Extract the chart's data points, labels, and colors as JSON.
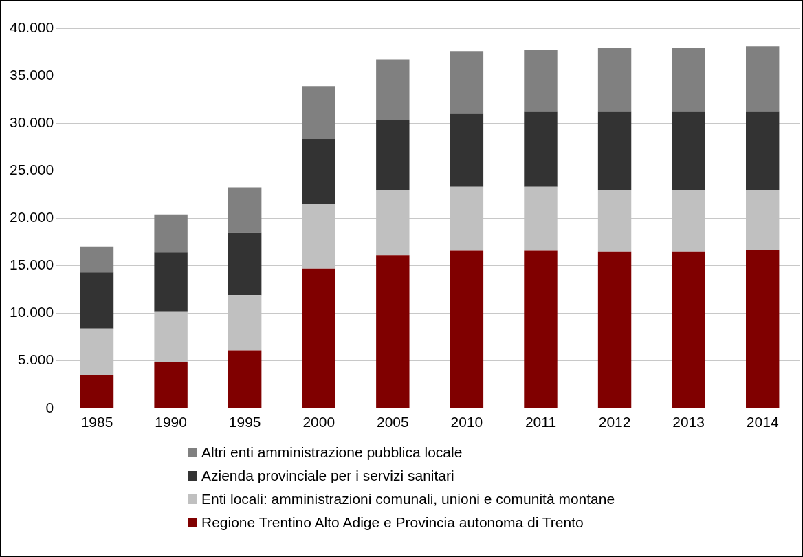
{
  "chart_data": {
    "type": "bar",
    "stacked": true,
    "categories": [
      "1985",
      "1990",
      "1995",
      "2000",
      "2005",
      "2010",
      "2011",
      "2012",
      "2013",
      "2014"
    ],
    "series": [
      {
        "name": "Regione Trentino Alto Adige e Provincia autonoma di Trento",
        "color": "#800000",
        "values": [
          3500,
          4900,
          6100,
          14700,
          16100,
          16600,
          16600,
          16500,
          16500,
          16700
        ]
      },
      {
        "name": "Enti locali: amministrazioni comunali, unioni e comunità montane",
        "color": "#c0c0c0",
        "values": [
          4900,
          5300,
          5800,
          6850,
          6900,
          6700,
          6700,
          6500,
          6500,
          6300
        ]
      },
      {
        "name": "Azienda provinciale per i servizi sanitari",
        "color": "#333333",
        "values": [
          5900,
          6200,
          6550,
          6800,
          7300,
          7700,
          7900,
          8200,
          8200,
          8200
        ]
      },
      {
        "name": "Altri enti amministrazione pubblica locale",
        "color": "#808080",
        "values": [
          2700,
          4000,
          4800,
          5550,
          6400,
          6600,
          6550,
          6700,
          6700,
          6900
        ]
      }
    ],
    "ylim": [
      0,
      40000
    ],
    "yticks": [
      {
        "value": 0,
        "label": "0"
      },
      {
        "value": 5000,
        "label": "5.000"
      },
      {
        "value": 10000,
        "label": "10.000"
      },
      {
        "value": 15000,
        "label": "15.000"
      },
      {
        "value": 20000,
        "label": "20.000"
      },
      {
        "value": 25000,
        "label": "25.000"
      },
      {
        "value": 30000,
        "label": "30.000"
      },
      {
        "value": 35000,
        "label": "35.000"
      },
      {
        "value": 40000,
        "label": "40.000"
      }
    ],
    "grid": "y",
    "legend": "bottom"
  }
}
